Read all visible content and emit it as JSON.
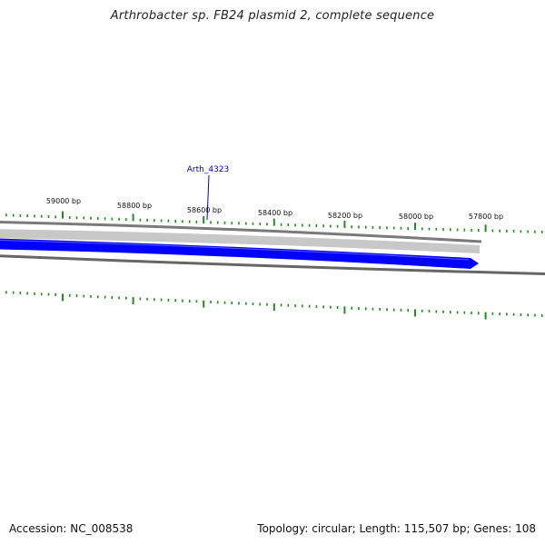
{
  "title": "Arthrobacter sp. FB24 plasmid 2, complete sequence",
  "footer": {
    "accession": "Accession: NC_008538",
    "info": "Topology: circular; Length: 115,507 bp; Genes: 108"
  },
  "scale_labels": [
    {
      "bp": 59000,
      "label": "59000 bp"
    },
    {
      "bp": 58800,
      "label": "58800 bp"
    },
    {
      "bp": 58600,
      "label": "58600 bp"
    },
    {
      "bp": 58400,
      "label": "58400 bp"
    },
    {
      "bp": 58200,
      "label": "58200 bp"
    },
    {
      "bp": 58000,
      "label": "58000 bp"
    },
    {
      "bp": 57800,
      "label": "57800 bp"
    }
  ],
  "genes": [
    {
      "name": "Arth_4323",
      "strand": "reverse",
      "start_bp": 57802,
      "end_bp": 59200
    }
  ],
  "colors": {
    "gene": "#0000ff",
    "ticks": "#228b22",
    "backbone": "#808080",
    "gene_label": "#0000cc"
  }
}
